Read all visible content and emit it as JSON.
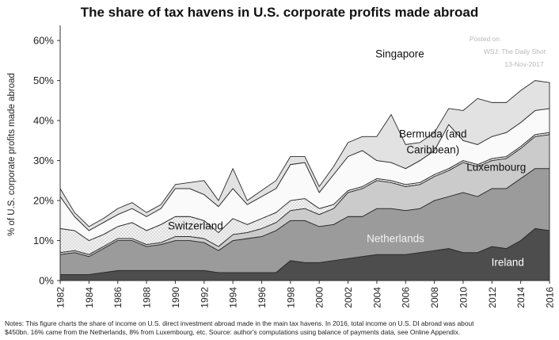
{
  "chart_data": {
    "type": "area",
    "title": "The share of tax havens in U.S. corporate profits made abroad",
    "ylabel": "% of U.S. corporate profits made abroad",
    "xlabel": "",
    "xlim": [
      1982,
      2016
    ],
    "ylim": [
      0,
      63
    ],
    "yticks": [
      0,
      10,
      20,
      30,
      40,
      50,
      60
    ],
    "ytick_labels": [
      "0%",
      "10%",
      "20%",
      "30%",
      "40%",
      "50%",
      "60%"
    ],
    "xticks": [
      1982,
      1984,
      1986,
      1988,
      1990,
      1992,
      1994,
      1996,
      1998,
      2000,
      2002,
      2004,
      2006,
      2008,
      2010,
      2012,
      2014,
      2016
    ],
    "stacked": true,
    "watermark": [
      "Posted on",
      "WSJ: The Daily Shot",
      "13-Nov-2017"
    ],
    "x": [
      1982,
      1983,
      1984,
      1985,
      1986,
      1987,
      1988,
      1989,
      1990,
      1991,
      1992,
      1993,
      1994,
      1995,
      1996,
      1997,
      1998,
      1999,
      2000,
      2001,
      2002,
      2003,
      2004,
      2005,
      2006,
      2007,
      2008,
      2009,
      2010,
      2011,
      2012,
      2013,
      2014,
      2015,
      2016
    ],
    "series": [
      {
        "name": "Ireland",
        "color": "#4d4d4d",
        "values": [
          1.5,
          1.5,
          1.5,
          2,
          2.5,
          2.5,
          2.5,
          2.5,
          2.5,
          2.5,
          2.5,
          2,
          2,
          2,
          2,
          2,
          5,
          4.5,
          4.5,
          5,
          5.5,
          6,
          6.5,
          6.5,
          6.5,
          7,
          7.5,
          8,
          7,
          7,
          8.5,
          8,
          10,
          13,
          12.5
        ]
      },
      {
        "name": "Netherlands",
        "color": "#999999",
        "values": [
          5,
          5.5,
          4.5,
          6,
          7.5,
          7.5,
          6,
          6.5,
          7.5,
          7.5,
          7,
          5.5,
          8,
          8.5,
          9,
          10.5,
          10,
          10.5,
          9,
          9,
          10.5,
          10,
          11.5,
          11.5,
          11,
          11,
          12.5,
          13,
          15,
          14,
          14.5,
          15,
          15.5,
          15,
          15.5
        ]
      },
      {
        "name": "Luxembourg",
        "color": "#c8c8c8",
        "values": [
          0.5,
          0.5,
          0.5,
          0.5,
          0.5,
          0.5,
          0.5,
          0.5,
          1,
          1,
          1,
          1,
          1.5,
          1.5,
          2,
          2,
          2.5,
          3,
          3,
          4,
          6,
          7,
          7,
          6.5,
          6,
          6,
          6,
          6.5,
          7.5,
          7.5,
          7,
          7.5,
          7.5,
          8,
          8.5
        ]
      },
      {
        "name": "Switzerland",
        "color": "#e6e6e6",
        "values": [
          6,
          5,
          3.5,
          3,
          3,
          4,
          3.5,
          4.5,
          5,
          5,
          4.5,
          3.5,
          4,
          2,
          2.5,
          2.5,
          2.5,
          2.5,
          1.5,
          1,
          0.5,
          0.5,
          0.5,
          0.5,
          0.5,
          0.5,
          0.5,
          0.5,
          0.5,
          0.5,
          0.5,
          0.5,
          0.5,
          0.5,
          0.5
        ]
      },
      {
        "name": "Bermuda (and Caribbean)",
        "color": "#f5f5f5",
        "values": [
          8,
          3.5,
          2.5,
          3,
          3,
          3.5,
          3.5,
          4,
          7,
          7,
          6.5,
          6.5,
          7.5,
          5,
          5.5,
          6,
          9,
          9,
          4,
          7.5,
          8.5,
          9,
          4.5,
          4.5,
          4,
          5.5,
          6,
          11,
          5,
          5,
          5.5,
          6,
          6,
          6,
          6
        ]
      },
      {
        "name": "Singapore",
        "color": "#e0e0e0",
        "values": [
          2,
          1,
          1,
          1,
          1.5,
          1.5,
          1,
          1,
          1,
          1.5,
          3.5,
          1.5,
          5,
          1,
          1.5,
          2,
          2,
          1.5,
          1.5,
          2,
          3.5,
          3.5,
          6,
          12,
          6,
          4.5,
          4.5,
          4,
          7.5,
          11.5,
          8.5,
          7.5,
          8,
          7.5,
          6.5
        ]
      }
    ],
    "labels": [
      {
        "text": "Singapore",
        "x": 2005.6,
        "y": 55.8
      },
      {
        "text": "Bermuda (and",
        "x": 2007.9,
        "y": 35.8
      },
      {
        "text": "Caribbean)",
        "x": 2007.9,
        "y": 31.8
      },
      {
        "text": "Luxembourg",
        "x": 2012.3,
        "y": 27.4
      },
      {
        "text": "Switzerland",
        "x": 1991.4,
        "y": 12.8
      },
      {
        "text": "Netherlands",
        "x": 2005.3,
        "y": 9.6
      },
      {
        "text": "Ireland",
        "x": 2013.1,
        "y": 3.7
      }
    ],
    "grid": false,
    "legend": "none"
  },
  "notes": [
    "Notes: This figure charts the share of income on U.S. direct investment abroad made in the main tax havens. In 2016, total income on U.S. DI abroad was about",
    "$450bn. 16% came from the Netherlands, 8% from Luxembourg, etc. Source: author's computations using balance of payments data, see Online Appendix."
  ]
}
